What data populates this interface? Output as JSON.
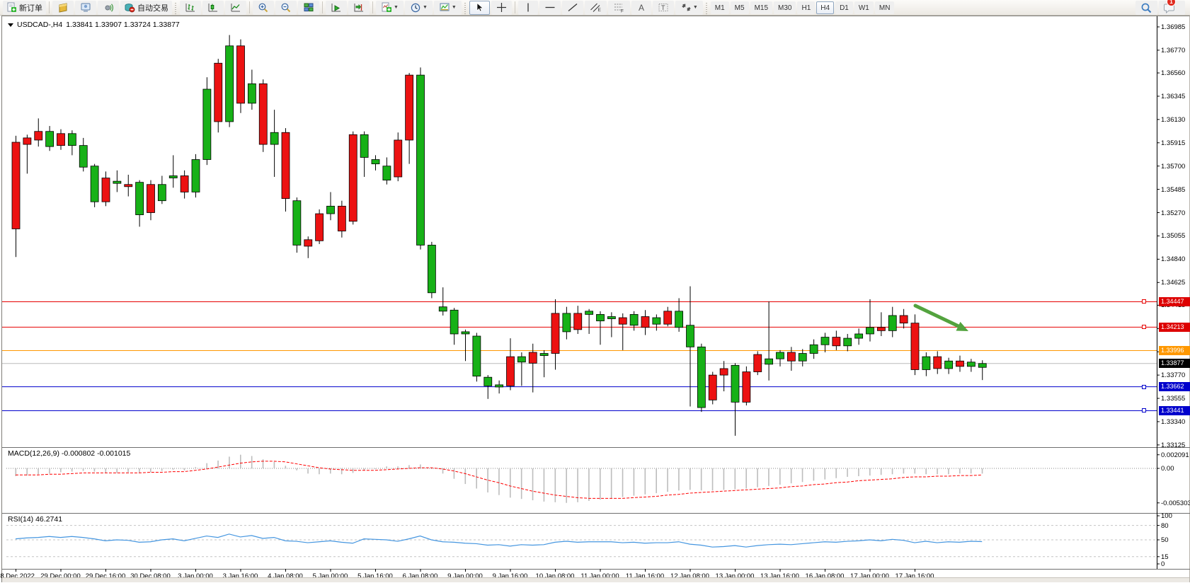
{
  "toolbar": {
    "new_order_label": "新订单",
    "autotrading_label": "自动交易",
    "timeframes": [
      "M1",
      "M5",
      "M15",
      "M30",
      "H1",
      "H4",
      "D1",
      "W1",
      "MN"
    ],
    "active_timeframe": "H4",
    "notification_count": "1"
  },
  "chart": {
    "title_symbol": "USDCAD-,H4",
    "title_ohlc": "1.33841 1.33907 1.33724 1.33877",
    "macd_label": "MACD(12,26,9) -0.000802 -0.001015",
    "rsi_label": "RSI(14) 46.2741"
  },
  "chart_data": {
    "type": "candlestick",
    "symbol": "USDCAD-",
    "timeframe": "H4",
    "title": "USDCAD-,H4 1.33841 1.33907 1.33724 1.33877",
    "current_bar": {
      "open": 1.33841,
      "high": 1.33907,
      "low": 1.33724,
      "close": 1.33877
    },
    "ylim": [
      1.33111,
      1.3707
    ],
    "price_axis_ticks": [
      1.36985,
      1.3677,
      1.3656,
      1.36345,
      1.3613,
      1.35915,
      1.357,
      1.35485,
      1.3527,
      1.35055,
      1.3484,
      1.34625,
      1.34415,
      1.342,
      1.33985,
      1.3377,
      1.33555,
      1.3334,
      1.33125
    ],
    "candles": [
      [
        1.3592,
        1.3598,
        1.3486,
        1.3512
      ],
      [
        1.3596,
        1.3599,
        1.3563,
        1.359
      ],
      [
        1.3602,
        1.3614,
        1.3588,
        1.3594
      ],
      [
        1.3588,
        1.3607,
        1.3584,
        1.3602
      ],
      [
        1.36,
        1.3604,
        1.3585,
        1.3589
      ],
      [
        1.3589,
        1.3603,
        1.358,
        1.36
      ],
      [
        1.3569,
        1.3596,
        1.3565,
        1.3589
      ],
      [
        1.3537,
        1.3572,
        1.3532,
        1.357
      ],
      [
        1.3559,
        1.3565,
        1.3533,
        1.3537
      ],
      [
        1.3554,
        1.3566,
        1.3546,
        1.3556
      ],
      [
        1.3553,
        1.3562,
        1.3542,
        1.3551
      ],
      [
        1.3525,
        1.3557,
        1.3514,
        1.3555
      ],
      [
        1.3553,
        1.3557,
        1.352,
        1.3527
      ],
      [
        1.3538,
        1.3561,
        1.3535,
        1.3553
      ],
      [
        1.3559,
        1.358,
        1.355,
        1.3561
      ],
      [
        1.3561,
        1.3566,
        1.354,
        1.3546
      ],
      [
        1.3546,
        1.3581,
        1.3541,
        1.3576
      ],
      [
        1.3576,
        1.3652,
        1.3571,
        1.3641
      ],
      [
        1.3665,
        1.3669,
        1.3601,
        1.3611
      ],
      [
        1.3611,
        1.3691,
        1.3606,
        1.3681
      ],
      [
        1.3681,
        1.3687,
        1.3619,
        1.3628
      ],
      [
        1.3628,
        1.3659,
        1.3622,
        1.3646
      ],
      [
        1.3646,
        1.365,
        1.3583,
        1.359
      ],
      [
        1.359,
        1.3622,
        1.356,
        1.3601
      ],
      [
        1.3601,
        1.3605,
        1.3528,
        1.354
      ],
      [
        1.3497,
        1.3541,
        1.349,
        1.3538
      ],
      [
        1.3502,
        1.3505,
        1.3485,
        1.3496
      ],
      [
        1.3526,
        1.353,
        1.3498,
        1.3501
      ],
      [
        1.3526,
        1.3546,
        1.352,
        1.3533
      ],
      [
        1.3533,
        1.3538,
        1.3504,
        1.351
      ],
      [
        1.3599,
        1.3602,
        1.3516,
        1.3519
      ],
      [
        1.3578,
        1.3602,
        1.356,
        1.3599
      ],
      [
        1.3572,
        1.358,
        1.3566,
        1.3576
      ],
      [
        1.3557,
        1.3578,
        1.3553,
        1.357
      ],
      [
        1.3594,
        1.3601,
        1.3556,
        1.356
      ],
      [
        1.3654,
        1.3656,
        1.3572,
        1.3594
      ],
      [
        1.3497,
        1.3661,
        1.3493,
        1.3654
      ],
      [
        1.3453,
        1.35,
        1.3448,
        1.3497
      ],
      [
        1.3436,
        1.3458,
        1.3432,
        1.344
      ],
      [
        1.3415,
        1.3439,
        1.3405,
        1.3437
      ],
      [
        1.3415,
        1.3419,
        1.339,
        1.3417
      ],
      [
        1.3376,
        1.3416,
        1.3371,
        1.3413
      ],
      [
        1.3367,
        1.3377,
        1.3355,
        1.3375
      ],
      [
        1.3366,
        1.3372,
        1.336,
        1.3368
      ],
      [
        1.3394,
        1.3411,
        1.3363,
        1.3367
      ],
      [
        1.3389,
        1.3398,
        1.3367,
        1.3394
      ],
      [
        1.3398,
        1.3406,
        1.3361,
        1.3388
      ],
      [
        1.3395,
        1.34,
        1.3375,
        1.3397
      ],
      [
        1.3434,
        1.3447,
        1.3382,
        1.3397
      ],
      [
        1.3417,
        1.344,
        1.341,
        1.3434
      ],
      [
        1.3434,
        1.3441,
        1.3415,
        1.3419
      ],
      [
        1.3433,
        1.3438,
        1.3415,
        1.3436
      ],
      [
        1.3427,
        1.3436,
        1.3405,
        1.3433
      ],
      [
        1.3429,
        1.3435,
        1.3412,
        1.3431
      ],
      [
        1.343,
        1.3434,
        1.34,
        1.3424
      ],
      [
        1.3423,
        1.3436,
        1.3418,
        1.3433
      ],
      [
        1.3431,
        1.3437,
        1.3414,
        1.3421
      ],
      [
        1.3424,
        1.3433,
        1.3418,
        1.343
      ],
      [
        1.3436,
        1.344,
        1.3422,
        1.3424
      ],
      [
        1.3421,
        1.3448,
        1.3417,
        1.3436
      ],
      [
        1.3403,
        1.3459,
        1.3348,
        1.3423
      ],
      [
        1.3347,
        1.3406,
        1.3343,
        1.3403
      ],
      [
        1.3377,
        1.338,
        1.335,
        1.3354
      ],
      [
        1.3383,
        1.339,
        1.3362,
        1.3377
      ],
      [
        1.3352,
        1.3388,
        1.3321,
        1.3386
      ],
      [
        1.338,
        1.3385,
        1.3349,
        1.3352
      ],
      [
        1.3396,
        1.3399,
        1.3377,
        1.338
      ],
      [
        1.3387,
        1.3445,
        1.3372,
        1.3392
      ],
      [
        1.3392,
        1.34,
        1.3385,
        1.3398
      ],
      [
        1.3398,
        1.3403,
        1.3381,
        1.339
      ],
      [
        1.339,
        1.3401,
        1.3385,
        1.3397
      ],
      [
        1.3397,
        1.341,
        1.3392,
        1.3405
      ],
      [
        1.3405,
        1.3416,
        1.3398,
        1.3412
      ],
      [
        1.3412,
        1.3418,
        1.34,
        1.3404
      ],
      [
        1.3404,
        1.3415,
        1.3399,
        1.3411
      ],
      [
        1.3411,
        1.342,
        1.3405,
        1.3415
      ],
      [
        1.3415,
        1.3447,
        1.3408,
        1.3421
      ],
      [
        1.3421,
        1.3435,
        1.3413,
        1.3418
      ],
      [
        1.3418,
        1.344,
        1.3412,
        1.3432
      ],
      [
        1.3432,
        1.3438,
        1.342,
        1.3425
      ],
      [
        1.3425,
        1.3433,
        1.3377,
        1.3382
      ],
      [
        1.3382,
        1.3398,
        1.3376,
        1.3394
      ],
      [
        1.3394,
        1.3399,
        1.3378,
        1.3383
      ],
      [
        1.3383,
        1.3393,
        1.3378,
        1.339
      ],
      [
        1.339,
        1.3395,
        1.338,
        1.3385
      ],
      [
        1.3385,
        1.3392,
        1.338,
        1.3389
      ],
      [
        1.33841,
        1.33907,
        1.33724,
        1.33877
      ]
    ],
    "x_labels": [
      {
        "label": "28 Dec 2022",
        "index": 0
      },
      {
        "label": "29 Dec 00:00",
        "index": 4
      },
      {
        "label": "29 Dec 16:00",
        "index": 8
      },
      {
        "label": "30 Dec 08:00",
        "index": 12
      },
      {
        "label": "3 Jan 00:00",
        "index": 16
      },
      {
        "label": "3 Jan 16:00",
        "index": 20
      },
      {
        "label": "4 Jan 08:00",
        "index": 24
      },
      {
        "label": "5 Jan 00:00",
        "index": 28
      },
      {
        "label": "5 Jan 16:00",
        "index": 32
      },
      {
        "label": "6 Jan 08:00",
        "index": 36
      },
      {
        "label": "9 Jan 00:00",
        "index": 40
      },
      {
        "label": "9 Jan 16:00",
        "index": 44
      },
      {
        "label": "10 Jan 08:00",
        "index": 48
      },
      {
        "label": "11 Jan 00:00",
        "index": 52
      },
      {
        "label": "11 Jan 16:00",
        "index": 56
      },
      {
        "label": "12 Jan 08:00",
        "index": 60
      },
      {
        "label": "13 Jan 00:00",
        "index": 64
      },
      {
        "label": "13 Jan 16:00",
        "index": 68
      },
      {
        "label": "16 Jan 08:00",
        "index": 72
      },
      {
        "label": "17 Jan 00:00",
        "index": 76
      },
      {
        "label": "17 Jan 16:00",
        "index": 80
      }
    ],
    "levels": [
      {
        "price": 1.34447,
        "label": "1.34447",
        "line_color": "#e60000",
        "tag_color": "#dd0000",
        "handle": true
      },
      {
        "price": 1.34213,
        "label": "1.34213",
        "line_color": "#e60000",
        "tag_color": "#dd0000",
        "handle": true
      },
      {
        "price": 1.33996,
        "label": "1.33996",
        "line_color": "#ff9800",
        "tag_color": "#ff9800",
        "handle": false
      },
      {
        "price": 1.33877,
        "label": "1.33877",
        "line_color": "#bcbcbc",
        "tag_color": "#000000",
        "handle": false
      },
      {
        "price": 1.33662,
        "label": "1.33662",
        "line_color": "#0000cc",
        "tag_color": "#0000cc",
        "handle": true
      },
      {
        "price": 1.33441,
        "label": "1.33441",
        "line_color": "#0000cc",
        "tag_color": "#0000cc",
        "handle": true
      }
    ],
    "indicators": {
      "macd": {
        "label": "MACD(12,26,9) -0.000802 -0.001015",
        "params": "12,26,9",
        "last_macd": -0.000802,
        "last_signal": -0.001015,
        "ylim": [
          -0.00674,
          0.003152
        ],
        "axis_ticks": [
          {
            "value": 0.002091,
            "label": "0.002091"
          },
          {
            "value": 0,
            "label": "0.00"
          },
          {
            "value": -0.005303,
            "label": "-0.005303"
          }
        ],
        "histogram": [
          -0.0012,
          -0.0011,
          -0.0009,
          -0.0008,
          -0.0006,
          -0.0005,
          -0.0004,
          -0.0005,
          -0.0007,
          -0.0007,
          -0.0006,
          -0.0007,
          -0.0006,
          -0.0004,
          -0.0002,
          -0.0003,
          0.0002,
          0.0008,
          0.0012,
          0.0018,
          0.0021,
          0.0019,
          0.0014,
          0.001,
          0.0004,
          -0.0003,
          -0.0008,
          -0.0009,
          -0.0008,
          -0.0009,
          -0.0007,
          -0.0003,
          0.0,
          0.0003,
          0.0003,
          0.0005,
          0.0006,
          0.0,
          -0.0008,
          -0.0016,
          -0.0024,
          -0.0031,
          -0.0037,
          -0.0041,
          -0.0045,
          -0.0047,
          -0.0049,
          -0.0051,
          -0.0052,
          -0.0053,
          -0.0052,
          -0.005,
          -0.0048,
          -0.0046,
          -0.0044,
          -0.0042,
          -0.004,
          -0.0038,
          -0.0036,
          -0.0034,
          -0.0033,
          -0.0034,
          -0.0034,
          -0.0033,
          -0.0032,
          -0.0031,
          -0.0029,
          -0.0027,
          -0.0025,
          -0.0023,
          -0.0021,
          -0.0019,
          -0.0017,
          -0.0015,
          -0.0013,
          -0.0012,
          -0.0011,
          -0.001,
          -0.0009,
          -0.0008,
          -0.0008,
          -0.0009,
          -0.0009,
          -0.0009,
          -0.0008,
          -0.0008,
          -0.000802
        ],
        "signal": [
          -0.001,
          -0.001,
          -0.001,
          -0.0009,
          -0.0009,
          -0.0008,
          -0.0007,
          -0.0007,
          -0.0007,
          -0.0007,
          -0.0007,
          -0.0007,
          -0.0006,
          -0.0006,
          -0.0005,
          -0.0005,
          -0.0003,
          -0.0001,
          0.0002,
          0.0005,
          0.0008,
          0.001,
          0.0011,
          0.0011,
          0.001,
          0.0007,
          0.0004,
          0.0001,
          -0.0001,
          -0.0002,
          -0.0003,
          -0.0003,
          -0.0003,
          -0.0002,
          -0.0001,
          0.0,
          0.0001,
          0.0001,
          -0.0001,
          -0.0004,
          -0.0008,
          -0.0013,
          -0.0018,
          -0.0022,
          -0.0027,
          -0.0031,
          -0.0035,
          -0.0038,
          -0.0041,
          -0.0043,
          -0.0045,
          -0.0046,
          -0.0046,
          -0.0046,
          -0.0046,
          -0.0045,
          -0.0044,
          -0.0043,
          -0.0041,
          -0.004,
          -0.0038,
          -0.0037,
          -0.0036,
          -0.0035,
          -0.0034,
          -0.0033,
          -0.0032,
          -0.0031,
          -0.003,
          -0.0028,
          -0.0027,
          -0.0025,
          -0.0024,
          -0.0022,
          -0.0021,
          -0.0019,
          -0.0018,
          -0.0017,
          -0.0016,
          -0.0014,
          -0.0013,
          -0.0013,
          -0.0012,
          -0.0012,
          -0.0011,
          -0.0011,
          -0.001015
        ],
        "colors": {
          "histogram": "#bdbdbd",
          "signal": "#ff0000",
          "zero_line": "#8a8a8a"
        }
      },
      "rsi": {
        "label": "RSI(14) 46.2741",
        "period": 14,
        "value": 46.2741,
        "ylim": [
          -7.35,
          104.4
        ],
        "axis_ticks": [
          100,
          80,
          50,
          15,
          0
        ],
        "level_lines": [
          80,
          50,
          15
        ],
        "values": [
          52,
          54,
          55,
          57,
          55,
          57,
          55,
          52,
          48,
          50,
          49,
          45,
          46,
          50,
          52,
          48,
          53,
          58,
          55,
          62,
          56,
          59,
          53,
          55,
          48,
          47,
          44,
          46,
          48,
          45,
          43,
          52,
          51,
          50,
          47,
          52,
          58,
          50,
          46,
          45,
          43,
          42,
          39,
          40,
          37,
          40,
          39,
          40,
          45,
          47,
          45,
          46,
          46,
          46,
          44,
          45,
          43,
          44,
          44,
          46,
          41,
          39,
          35,
          36,
          38,
          35,
          38,
          40,
          41,
          40,
          42,
          44,
          46,
          45,
          47,
          48,
          50,
          48,
          51,
          49,
          44,
          47,
          44,
          46,
          45,
          47,
          46.2741
        ],
        "color": "#4596e0",
        "grid_color": "#c4c4c4"
      }
    },
    "annotations": [
      {
        "type": "arrow",
        "from": [
          1292,
          431
        ],
        "to": [
          1353,
          460
        ],
        "head": [
          [
            1367,
            467
          ],
          [
            1349.5,
            466.5
          ],
          [
            1355.5,
            453.9
          ]
        ],
        "color": "#53a33e"
      }
    ],
    "colors": {
      "up": "#17b117",
      "down": "#ec1212",
      "wick": "#000000",
      "background": "#ffffff",
      "axis_text": "#000000"
    }
  }
}
